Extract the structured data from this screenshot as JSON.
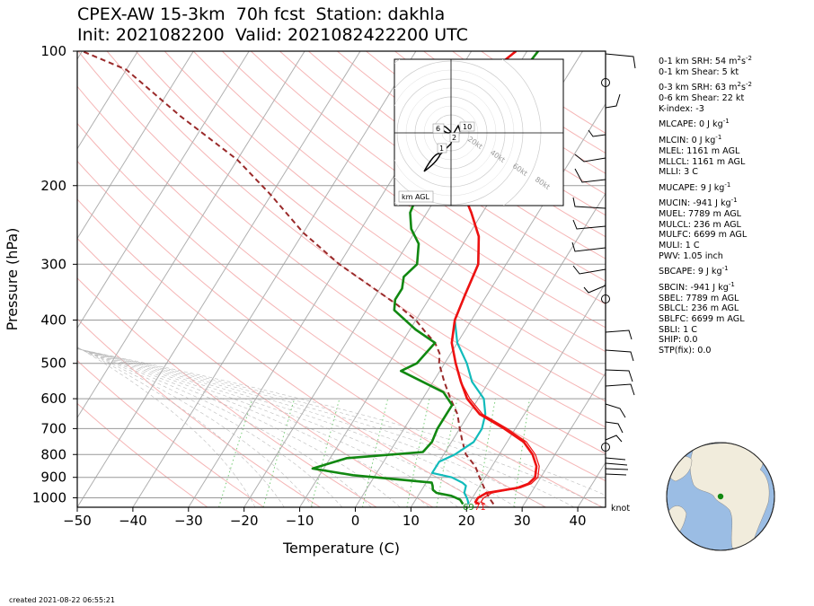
{
  "title_line1": "CPEX-AW 15-3km  70h fcst  Station: dakhla",
  "title_line2": "Init: 2021082200  Valid: 2021082422200 UTC",
  "created": "created 2021-08-22 06:55:21",
  "colors": {
    "temperature": "#ee1111",
    "virtual_temperature": "#ee1111",
    "dewpoint": "#118811",
    "wetbulb": "#11bbbb",
    "parcel": "#9a2a2a",
    "isotherm": "#b0b0b0",
    "dry_adiabat": "#f5b5b5",
    "moist_adiabat": "#bbbbbb",
    "mixing_ratio": "#77cc77"
  },
  "indices": [
    {
      "label": "0-1 km SRH: 54 m",
      "sup": "2",
      "mid": "s",
      "sup2": "-2"
    },
    {
      "label": "0-1 km Shear: 5 kt"
    },
    {
      "label": "0-3 km SRH: 63 m",
      "sup": "2",
      "mid": "s",
      "sup2": "-2"
    },
    {
      "label": "0-6 km Shear: 22 kt"
    },
    {
      "label": "K-index: -3"
    },
    {
      "label": "MLCAPE: 0 J kg",
      "sup": "-1"
    },
    {
      "label": "MLCIN: 0 J kg",
      "sup": "-1"
    },
    {
      "label": "MLEL: 1161 m AGL"
    },
    {
      "label": "MLLCL: 1161 m AGL"
    },
    {
      "label": "MLLI: 3 C"
    },
    {
      "label": "MUCAPE: 9 J kg",
      "sup": "-1"
    },
    {
      "label": "MUCIN: -941 J kg",
      "sup": "-1"
    },
    {
      "label": "MUEL: 7789 m AGL"
    },
    {
      "label": "MULCL: 236 m AGL"
    },
    {
      "label": "MULFC: 6699 m AGL"
    },
    {
      "label": "MULI: 1 C"
    },
    {
      "label": "PWV: 1.05 inch"
    },
    {
      "label": "SBCAPE: 9 J kg",
      "sup": "-1"
    },
    {
      "label": "SBCIN: -941 J kg",
      "sup": "-1"
    },
    {
      "label": "SBEL: 7789 m AGL"
    },
    {
      "label": "SBLCL: 236 m AGL"
    },
    {
      "label": "SBLFC: 6699 m AGL"
    },
    {
      "label": "SBLI: 1 C"
    },
    {
      "label": "SHIP: 0.0"
    },
    {
      "label": "STP(fix): 0.0"
    }
  ],
  "chart_data": {
    "type": "line",
    "subtype": "skew-T log-p",
    "xlabel": "Temperature (C)",
    "ylabel": "Pressure (hPa)",
    "xlim": [
      -50,
      45
    ],
    "ylim": [
      1050,
      100
    ],
    "y_scale": "log",
    "x_ticks": [
      -50,
      -40,
      -30,
      -20,
      -10,
      0,
      10,
      20,
      30,
      40
    ],
    "y_ticks": [
      100,
      200,
      300,
      400,
      500,
      600,
      700,
      800,
      900,
      1000
    ],
    "surface_labels": {
      "dewpoint": "69",
      "temperature": "71"
    },
    "wind_unit": "knot",
    "series": [
      {
        "key": "temperature",
        "points": [
          [
            22,
            1033
          ],
          [
            21,
            1022
          ],
          [
            21,
            1000
          ],
          [
            22,
            975
          ],
          [
            27,
            950
          ],
          [
            28.5,
            930
          ],
          [
            29,
            900
          ],
          [
            28,
            850
          ],
          [
            26,
            800
          ],
          [
            23,
            750
          ],
          [
            18,
            700
          ],
          [
            12,
            650
          ],
          [
            8,
            600
          ],
          [
            5,
            550
          ],
          [
            2,
            500
          ],
          [
            -1,
            450
          ],
          [
            -3,
            400
          ],
          [
            -4,
            350
          ],
          [
            -5,
            300
          ],
          [
            -8,
            260
          ],
          [
            -12,
            230
          ],
          [
            -17,
            200
          ],
          [
            -22,
            170
          ],
          [
            -25,
            150
          ],
          [
            -26,
            130
          ],
          [
            -25,
            115
          ],
          [
            -22,
            100
          ]
        ]
      },
      {
        "key": "virtual_temperature",
        "points": [
          [
            23,
            1033
          ],
          [
            22,
            1022
          ],
          [
            22,
            1000
          ],
          [
            23,
            975
          ],
          [
            27.5,
            950
          ],
          [
            29,
            930
          ],
          [
            29.5,
            900
          ],
          [
            28.5,
            850
          ],
          [
            26.5,
            800
          ],
          [
            23.5,
            750
          ],
          [
            18.5,
            700
          ],
          [
            12.5,
            650
          ],
          [
            8.5,
            600
          ],
          [
            5,
            550
          ],
          [
            2,
            500
          ],
          [
            -1,
            450
          ],
          [
            -3,
            400
          ],
          [
            -4,
            350
          ],
          [
            -5,
            300
          ],
          [
            -8,
            260
          ],
          [
            -12,
            230
          ],
          [
            -17,
            200
          ],
          [
            -22,
            170
          ],
          [
            -25,
            150
          ],
          [
            -26,
            130
          ],
          [
            -25,
            115
          ],
          [
            -22,
            100
          ]
        ]
      },
      {
        "key": "dewpoint",
        "points": [
          [
            19,
            1033
          ],
          [
            18,
            1010
          ],
          [
            16,
            990
          ],
          [
            13,
            975
          ],
          [
            12,
            960
          ],
          [
            11.5,
            940
          ],
          [
            11,
            925
          ],
          [
            -4,
            890
          ],
          [
            -12,
            860
          ],
          [
            -7,
            815
          ],
          [
            6,
            790
          ],
          [
            6.5,
            750
          ],
          [
            6,
            700
          ],
          [
            6,
            650
          ],
          [
            6,
            620
          ],
          [
            3,
            580
          ],
          [
            -7,
            520
          ],
          [
            -5,
            500
          ],
          [
            -4,
            450
          ],
          [
            -9,
            420
          ],
          [
            -15,
            380
          ],
          [
            -16,
            360
          ],
          [
            -16,
            340
          ],
          [
            -17,
            320
          ],
          [
            -16,
            300
          ],
          [
            -18,
            270
          ],
          [
            -21,
            250
          ],
          [
            -23,
            230
          ],
          [
            -24,
            200
          ],
          [
            -22,
            170
          ],
          [
            -20,
            155
          ],
          [
            -19,
            140
          ],
          [
            -19,
            120
          ],
          [
            -18,
            100
          ]
        ]
      },
      {
        "key": "wetbulb",
        "points": [
          [
            20,
            1033
          ],
          [
            19.5,
            1015
          ],
          [
            19,
            1000
          ],
          [
            18,
            975
          ],
          [
            17.5,
            940
          ],
          [
            16.5,
            925
          ],
          [
            14,
            900
          ],
          [
            10,
            880
          ],
          [
            10,
            830
          ],
          [
            12,
            800
          ],
          [
            14,
            750
          ],
          [
            14,
            700
          ],
          [
            13,
            650
          ],
          [
            11,
            600
          ],
          [
            7,
            550
          ],
          [
            4,
            500
          ],
          [
            0,
            450
          ],
          [
            -3,
            400
          ],
          [
            -4,
            350
          ],
          [
            -5,
            300
          ],
          [
            -8,
            260
          ],
          [
            -12,
            230
          ],
          [
            -17,
            200
          ],
          [
            -22,
            170
          ],
          [
            -25,
            150
          ],
          [
            -26,
            130
          ],
          [
            -25,
            115
          ],
          [
            -22,
            100
          ]
        ]
      },
      {
        "key": "parcel",
        "points": [
          [
            24.5,
            1033
          ],
          [
            23,
            1000
          ],
          [
            21,
            950
          ],
          [
            19,
            900
          ],
          [
            17,
            850
          ],
          [
            14,
            800
          ],
          [
            12,
            750
          ],
          [
            10,
            700
          ],
          [
            8,
            650
          ],
          [
            5,
            600
          ],
          [
            2,
            550
          ],
          [
            -1,
            500
          ],
          [
            -2,
            475
          ],
          [
            -4,
            450
          ],
          [
            -7,
            425
          ],
          [
            -10,
            400
          ],
          [
            -15,
            370
          ],
          [
            -20,
            345
          ],
          [
            -30,
            300
          ],
          [
            -40,
            255
          ],
          [
            -50,
            210
          ],
          [
            -60,
            175
          ],
          [
            -75,
            140
          ],
          [
            -90,
            110
          ],
          [
            -100,
            100
          ]
        ]
      }
    ]
  }
}
